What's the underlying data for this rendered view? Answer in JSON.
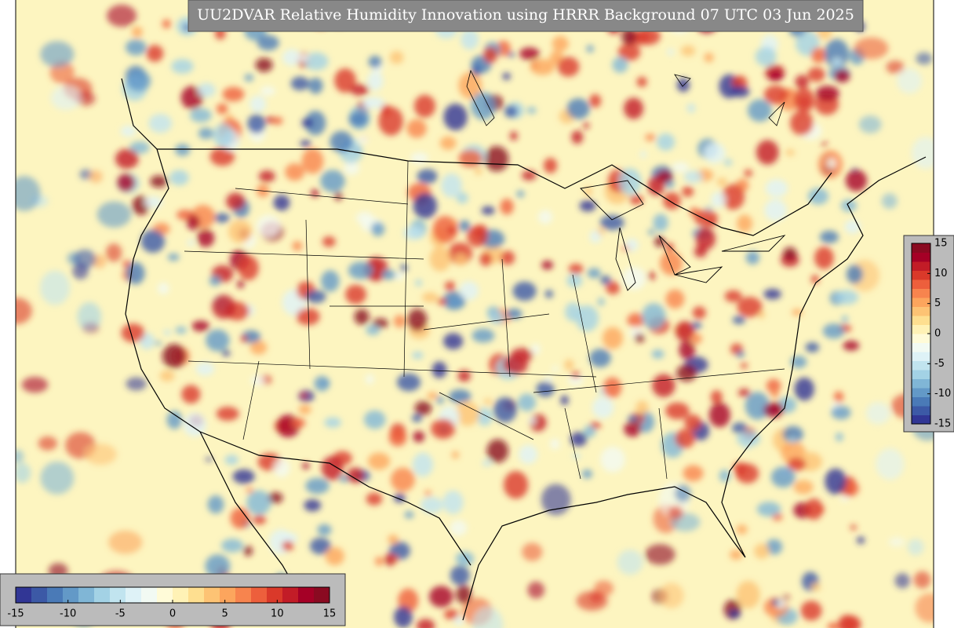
{
  "title": "UU2DVAR Relative Humidity Innovation using HRRR Background 07 UTC 03 Jun 2025",
  "colorbar": {
    "range": [
      -15,
      15
    ],
    "ticks": [
      -15,
      -10,
      -5,
      0,
      5,
      10,
      15
    ],
    "colors": [
      "#313695",
      "#3c59a6",
      "#4a7ab7",
      "#6399c7",
      "#80b6d6",
      "#a3d2e5",
      "#c1e4ef",
      "#def2f7",
      "#f2faf3",
      "#fffbd8",
      "#fff2b6",
      "#fedf90",
      "#fdc374",
      "#fca55d",
      "#f7844e",
      "#ed5f3c",
      "#da392a",
      "#c21c27",
      "#a50026",
      "#8a0a21"
    ]
  }
}
